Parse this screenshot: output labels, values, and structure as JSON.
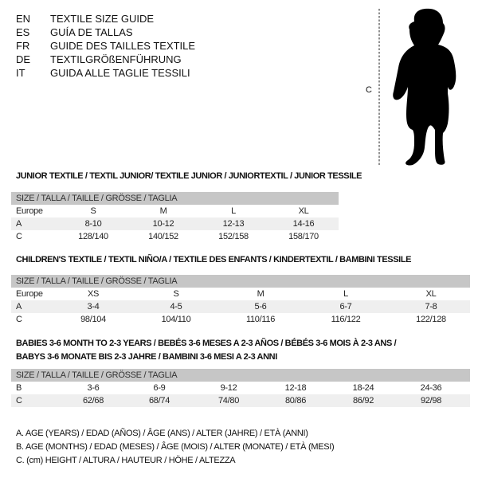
{
  "title_lines": [
    {
      "code": "EN",
      "text": "TEXTILE SIZE GUIDE"
    },
    {
      "code": "ES",
      "text": "GUÍA DE TALLAS"
    },
    {
      "code": "FR",
      "text": "GUIDE DES TAILLES TEXTILE"
    },
    {
      "code": "DE",
      "text": "TEXTILGRÖßENFÜHRUNG"
    },
    {
      "code": "IT",
      "text": "GUIDA ALLE TAGLIE TESSILI"
    }
  ],
  "figure": {
    "label": "C",
    "icon": "baby-silhouette"
  },
  "size_header": "SIZE / TALLA / TAILLE / GRÖSSE / TAGLIA",
  "junior": {
    "heading": "JUNIOR TEXTILE / TEXTIL JUNIOR/ TEXTILE JUNIOR / JUNIORTEXTIL / JUNIOR TESSILE",
    "rows": [
      {
        "label": "Europe",
        "cells": [
          "S",
          "M",
          "L",
          "XL"
        ]
      },
      {
        "label": "A",
        "cells": [
          "8-10",
          "10-12",
          "12-13",
          "14-16"
        ]
      },
      {
        "label": "C",
        "cells": [
          "128/140",
          "140/152",
          "152/158",
          "158/170"
        ]
      }
    ]
  },
  "children": {
    "heading": "CHILDREN'S TEXTILE / TEXTIL NIÑO/A / TEXTILE DES ENFANTS / KINDERTEXTIL / BAMBINI TESSILE",
    "rows": [
      {
        "label": "Europe",
        "cells": [
          "XS",
          "S",
          "M",
          "L",
          "XL"
        ]
      },
      {
        "label": "A",
        "cells": [
          "3-4",
          "4-5",
          "5-6",
          "6-7",
          "7-8"
        ]
      },
      {
        "label": "C",
        "cells": [
          "98/104",
          "104/110",
          "110/116",
          "116/122",
          "122/128"
        ]
      }
    ]
  },
  "babies": {
    "heading1": "BABIES 3-6 MONTH TO 2-3 YEARS / BEBÉS 3-6 MESES A 2-3 AÑOS / BÉBÉS 3-6 MOIS À 2-3 ANS /",
    "heading2": "BABYS 3-6 MONATE BIS 2-3 JAHRE / BAMBINI 3-6 MESI A 2-3 ANNI",
    "rows": [
      {
        "label": "B",
        "cells": [
          "3-6",
          "6-9",
          "9-12",
          "12-18",
          "18-24",
          "24-36"
        ]
      },
      {
        "label": "C",
        "cells": [
          "62/68",
          "68/74",
          "74/80",
          "80/86",
          "86/92",
          "92/98"
        ]
      }
    ]
  },
  "legend": [
    "A. AGE (YEARS) / EDAD (AÑOS) / ÂGE (ANS) / ALTER (JAHRE) / ETÀ (ANNI)",
    "B. AGE (MONTHS) / EDAD (MESES) / ÂGE (MOIS) / ALTER (MONATE) / ETÀ (MESI)",
    "C. (cm) HEIGHT / ALTURA / HAUTEUR / HÖHE / ALTEZZA"
  ]
}
